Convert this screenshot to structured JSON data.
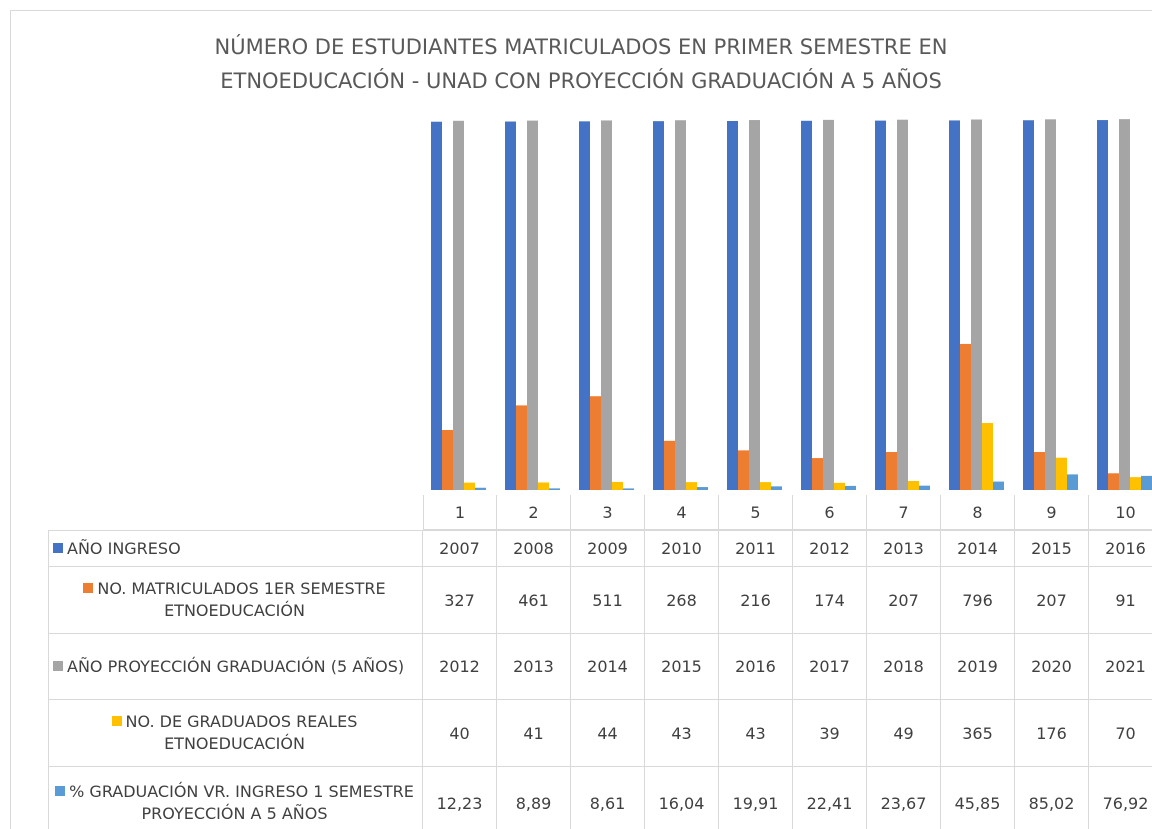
{
  "chart_data": {
    "type": "bar",
    "title": "NÚMERO DE ESTUDIANTES MATRICULADOS EN PRIMER SEMESTRE  EN\nETNOEDUCACIÓN - UNAD  CON PROYECCIÓN GRADUACIÓN A 5 AÑOS",
    "categories": [
      1,
      2,
      3,
      4,
      5,
      6,
      7,
      8,
      9,
      10
    ],
    "ylim": [
      0,
      2000
    ],
    "series": [
      {
        "name": "AÑO INGRESO",
        "color": "#4472c4",
        "values": [
          2007,
          2008,
          2009,
          2010,
          2011,
          2012,
          2013,
          2014,
          2015,
          2016
        ]
      },
      {
        "name": "NO. MATRICULADOS  1ER SEMESTRE ETNOEDUCACIÓN",
        "color": "#ed7d31",
        "values": [
          327,
          461,
          511,
          268,
          216,
          174,
          207,
          796,
          207,
          91
        ]
      },
      {
        "name": "AÑO PROYECCIÓN GRADUACIÓN (5 AÑOS)",
        "color": "#a5a5a5",
        "values": [
          2012,
          2013,
          2014,
          2015,
          2016,
          2017,
          2018,
          2019,
          2020,
          2021
        ]
      },
      {
        "name": "NO. DE GRADUADOS REALES ETNOEDUCACIÓN",
        "color": "#ffc000",
        "values": [
          40,
          41,
          44,
          43,
          43,
          39,
          49,
          365,
          176,
          70
        ]
      },
      {
        "name": "% GRADUACIÓN VR. INGRESO 1 SEMESTRE  PROYECCIÓN A 5 AÑOS",
        "color": "#5b9bd5",
        "values": [
          12.23,
          8.89,
          8.61,
          16.04,
          19.91,
          22.41,
          23.67,
          45.85,
          85.02,
          76.92
        ],
        "value_labels": [
          "12,23",
          "8,89",
          "8,61",
          "16,04",
          "19,91",
          "22,41",
          "23,67",
          "45,85",
          "85,02",
          "76,92"
        ]
      }
    ]
  }
}
